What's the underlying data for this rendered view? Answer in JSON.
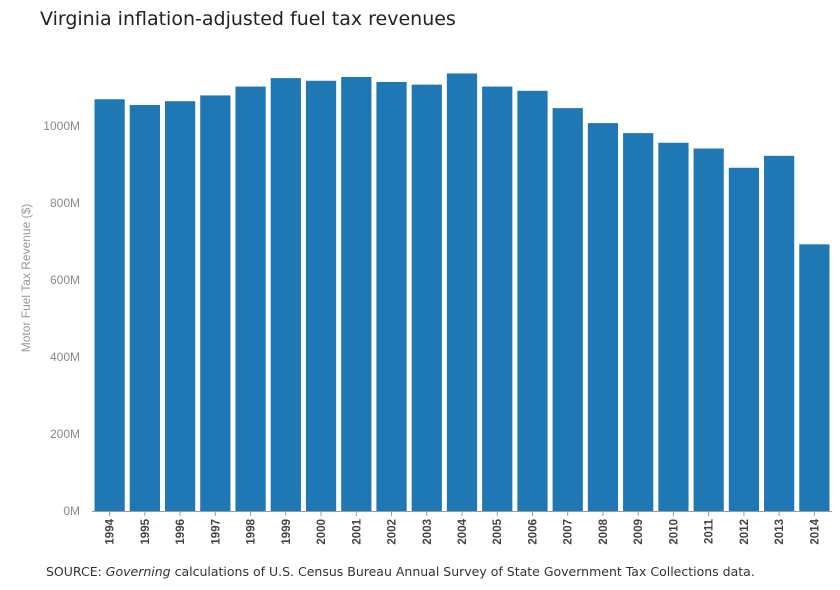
{
  "chart_data": {
    "type": "bar",
    "title": "Virginia inflation-adjusted fuel tax revenues",
    "ylabel": "Motor Fuel Tax Revenue ($)",
    "xlabel": "",
    "ylim": [
      0,
      1250
    ],
    "yticks": [
      0,
      200,
      400,
      600,
      800,
      1000
    ],
    "ytick_labels": [
      "0M",
      "200M",
      "400M",
      "600M",
      "800M",
      "1000M"
    ],
    "categories": [
      "1994",
      "1995",
      "1996",
      "1997",
      "1998",
      "1999",
      "2000",
      "2001",
      "2002",
      "2003",
      "2004",
      "2005",
      "2006",
      "2007",
      "2008",
      "2009",
      "2010",
      "2011",
      "2012",
      "2013",
      "2014"
    ],
    "values": [
      1070,
      1055,
      1065,
      1080,
      1103,
      1125,
      1118,
      1128,
      1115,
      1108,
      1137,
      1103,
      1092,
      1047,
      1008,
      982,
      957,
      942,
      892,
      923,
      693
    ],
    "bar_color": "#1f77b4",
    "grid": false
  },
  "source": {
    "prefix": "SOURCE: ",
    "italic": "Governing",
    "suffix": " calculations of U.S. Census Bureau Annual Survey of State Government Tax Collections data."
  }
}
